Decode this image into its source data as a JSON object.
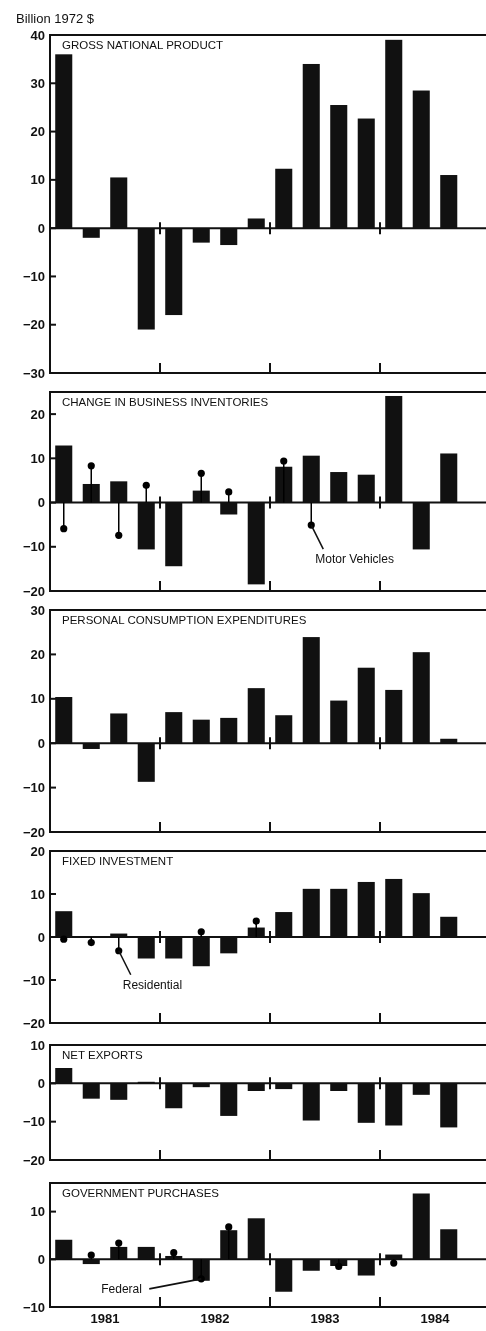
{
  "chart_data": [
    {
      "type": "bar",
      "title": "GROSS NATIONAL PRODUCT",
      "ylabel": "Billion 1972 $",
      "x": [
        1981.125,
        1981.375,
        1981.625,
        1981.875,
        1982.125,
        1982.375,
        1982.625,
        1982.875,
        1983.125,
        1983.375,
        1983.625,
        1983.875,
        1984.125,
        1984.375,
        1984.625
      ],
      "xlim": [
        1981,
        1985
      ],
      "xticks": [
        {
          "value": 1982,
          "label": null
        },
        {
          "value": 1983,
          "label": null
        },
        {
          "value": 1984,
          "label": null
        }
      ],
      "ylim": [
        -30,
        40
      ],
      "yticks": [
        -30,
        -20,
        -10,
        0,
        10,
        20,
        30,
        40
      ],
      "tick_labels": "y",
      "series": [
        {
          "color": "#111111",
          "values": [
            36,
            -2,
            10.5,
            -21,
            -18,
            -3,
            -3.5,
            2,
            12.3,
            34,
            25.5,
            22.7,
            39,
            28.5,
            11
          ]
        }
      ]
    },
    {
      "type": "bar",
      "title": "CHANGE IN BUSINESS INVENTORIES",
      "x": [
        1981.125,
        1981.375,
        1981.625,
        1981.875,
        1982.125,
        1982.375,
        1982.625,
        1982.875,
        1983.125,
        1983.375,
        1983.625,
        1983.875,
        1984.125,
        1984.375,
        1984.625
      ],
      "xlim": [
        1981,
        1985
      ],
      "xticks": [
        {
          "value": 1982,
          "label": null
        },
        {
          "value": 1983,
          "label": null
        },
        {
          "value": 1984,
          "label": null
        }
      ],
      "ylim": [
        -20,
        25
      ],
      "yticks": [
        -20,
        -10,
        0,
        10,
        20
      ],
      "tick_labels": "y",
      "series": [
        {
          "color": "#111111",
          "values": [
            12.9,
            4.2,
            4.8,
            -10.6,
            -14.4,
            2.7,
            -2.7,
            -18.5,
            8.1,
            10.6,
            6.9,
            6.3,
            24.1,
            -10.6,
            11.1
          ]
        },
        {
          "type": "lollipop",
          "color": "#000000",
          "values": [
            -5.9,
            8.3,
            -7.4,
            3.9,
            null,
            6.6,
            2.4,
            null,
            9.4,
            -5.1,
            null,
            null,
            null,
            null,
            null
          ]
        }
      ],
      "annotations": [
        {
          "text": "Motor Vehicles",
          "x": 1983.375,
          "y": -5.1
        }
      ]
    },
    {
      "type": "bar",
      "title": "PERSONAL CONSUMPTION EXPENDITURES",
      "x": [
        1981.125,
        1981.375,
        1981.625,
        1981.875,
        1982.125,
        1982.375,
        1982.625,
        1982.875,
        1983.125,
        1983.375,
        1983.625,
        1983.875,
        1984.125,
        1984.375,
        1984.625
      ],
      "xlim": [
        1981,
        1985
      ],
      "xticks": [
        {
          "value": 1982,
          "label": null
        },
        {
          "value": 1983,
          "label": null
        },
        {
          "value": 1984,
          "label": null
        }
      ],
      "ylim": [
        -20,
        30
      ],
      "yticks": [
        -20,
        -10,
        0,
        10,
        20,
        30
      ],
      "tick_labels": "y",
      "series": [
        {
          "color": "#111111",
          "values": [
            10.4,
            -1.3,
            6.7,
            -8.7,
            7,
            5.3,
            5.7,
            12.4,
            6.3,
            23.9,
            9.6,
            17,
            12,
            20.5,
            1
          ]
        }
      ]
    },
    {
      "type": "bar",
      "title": "FIXED INVESTMENT",
      "x": [
        1981.125,
        1981.375,
        1981.625,
        1981.875,
        1982.125,
        1982.375,
        1982.625,
        1982.875,
        1983.125,
        1983.375,
        1983.625,
        1983.875,
        1984.125,
        1984.375,
        1984.625
      ],
      "xlim": [
        1981,
        1985
      ],
      "xticks": [
        {
          "value": 1982,
          "label": null
        },
        {
          "value": 1983,
          "label": null
        },
        {
          "value": 1984,
          "label": null
        }
      ],
      "ylim": [
        -20,
        20
      ],
      "yticks": [
        -20,
        -10,
        0,
        10,
        20
      ],
      "tick_labels": "y",
      "series": [
        {
          "color": "#111111",
          "values": [
            6,
            0,
            0.8,
            -5,
            -5,
            -6.8,
            -3.8,
            2.2,
            5.8,
            11.2,
            11.2,
            12.8,
            13.5,
            10.2,
            4.7
          ]
        },
        {
          "type": "lollipop",
          "color": "#000000",
          "values": [
            -0.5,
            -1.3,
            -3.2,
            null,
            null,
            1.2,
            null,
            3.7,
            null,
            null,
            null,
            null,
            null,
            null,
            null
          ]
        }
      ],
      "annotations": [
        {
          "text": "Residential",
          "x": 1981.625,
          "y": -3.2
        }
      ]
    },
    {
      "type": "bar",
      "title": "NET EXPORTS",
      "x": [
        1981.125,
        1981.375,
        1981.625,
        1981.875,
        1982.125,
        1982.375,
        1982.625,
        1982.875,
        1983.125,
        1983.375,
        1983.625,
        1983.875,
        1984.125,
        1984.375,
        1984.625
      ],
      "xlim": [
        1981,
        1985
      ],
      "xticks": [
        {
          "value": 1982,
          "label": null
        },
        {
          "value": 1983,
          "label": null
        },
        {
          "value": 1984,
          "label": null
        }
      ],
      "ylim": [
        -20,
        10
      ],
      "yticks": [
        -20,
        -10,
        0,
        10
      ],
      "tick_labels": "y",
      "series": [
        {
          "color": "#111111",
          "values": [
            4,
            -4,
            -4.3,
            0.4,
            -6.5,
            -1,
            -8.5,
            -2,
            -1.5,
            -9.7,
            -2,
            -10.3,
            -11,
            -3,
            -11.5
          ]
        }
      ]
    },
    {
      "type": "bar",
      "title": "GOVERNMENT PURCHASES",
      "x": [
        1981.125,
        1981.375,
        1981.625,
        1981.875,
        1982.125,
        1982.375,
        1982.625,
        1982.875,
        1983.125,
        1983.375,
        1983.625,
        1983.875,
        1984.125,
        1984.375,
        1984.625
      ],
      "xlim": [
        1981,
        1985
      ],
      "xticks": [
        {
          "value": 1981.5,
          "label": "1981"
        },
        {
          "value": 1982,
          "label": null
        },
        {
          "value": 1982.5,
          "label": "1982"
        },
        {
          "value": 1983,
          "label": null
        },
        {
          "value": 1983.5,
          "label": "1983"
        },
        {
          "value": 1984,
          "label": null
        },
        {
          "value": 1984.5,
          "label": "1984"
        }
      ],
      "ylim": [
        -10,
        16
      ],
      "yticks": [
        -10,
        0,
        10
      ],
      "series": [
        {
          "color": "#111111",
          "values": [
            4.1,
            -1,
            2.6,
            2.6,
            0.7,
            -4.5,
            6.1,
            8.6,
            -6.8,
            -2.4,
            -1.4,
            -3.4,
            1,
            13.8,
            6.3
          ]
        },
        {
          "type": "lollipop",
          "color": "#000000",
          "values": [
            null,
            0.9,
            3.4,
            null,
            1.4,
            -4.1,
            6.8,
            null,
            null,
            null,
            -1.5,
            null,
            -0.8,
            null,
            null
          ]
        }
      ],
      "annotations": [
        {
          "text": "Federal",
          "x": 1982.375,
          "y": -4.1
        }
      ]
    }
  ]
}
